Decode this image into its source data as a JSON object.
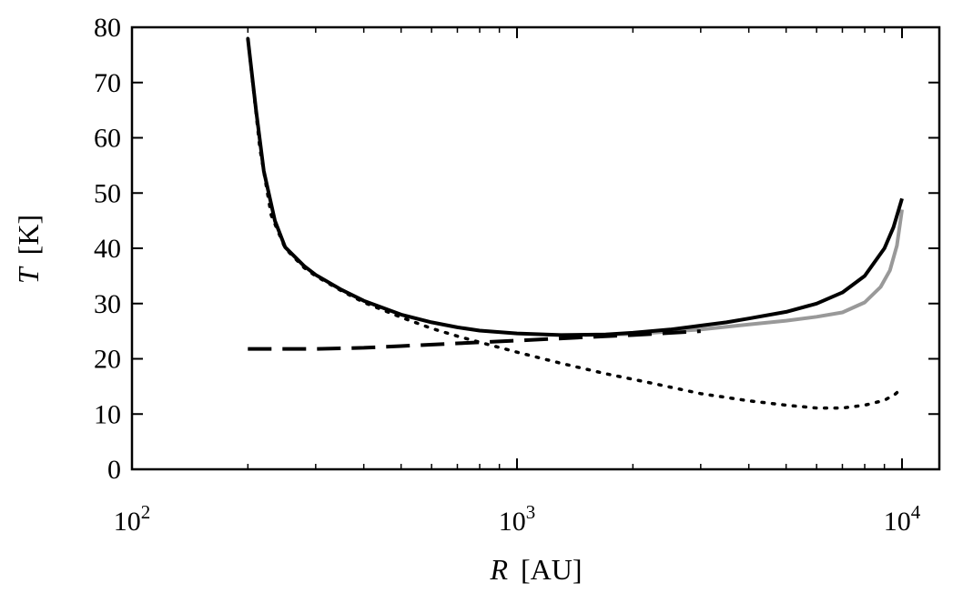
{
  "chart_data": {
    "type": "line",
    "xscale": "log",
    "xlim": [
      100,
      12500
    ],
    "ylim": [
      0,
      80
    ],
    "xlabel": {
      "var": "R",
      "unit": "[AU]"
    },
    "ylabel": {
      "var": "T",
      "unit": "[K]"
    },
    "xticks": [
      {
        "value": 100,
        "base": "10",
        "exp": "2"
      },
      {
        "value": 1000,
        "base": "10",
        "exp": "3"
      },
      {
        "value": 10000,
        "base": "10",
        "exp": "4"
      }
    ],
    "xminor_ticks": [
      200,
      300,
      400,
      500,
      600,
      700,
      800,
      900,
      2000,
      3000,
      4000,
      5000,
      6000,
      7000,
      8000,
      9000
    ],
    "yticks": [
      0,
      10,
      20,
      30,
      40,
      50,
      60,
      70,
      80
    ],
    "yticklabels": [
      "0",
      "10",
      "20",
      "30",
      "40",
      "50",
      "60",
      "70",
      "80"
    ],
    "grid": false,
    "legend": false,
    "series": [
      {
        "style": "dotted",
        "color": "#000000",
        "points": [
          [
            200,
            78
          ],
          [
            215,
            58
          ],
          [
            230,
            46
          ],
          [
            250,
            40
          ],
          [
            280,
            36.5
          ],
          [
            300,
            35
          ],
          [
            350,
            32.3
          ],
          [
            400,
            30.2
          ],
          [
            500,
            27.5
          ],
          [
            600,
            25.5
          ],
          [
            700,
            24.1
          ],
          [
            800,
            23
          ],
          [
            1000,
            21.2
          ],
          [
            1300,
            19.2
          ],
          [
            1700,
            17.3
          ],
          [
            2200,
            15.7
          ],
          [
            3000,
            13.7
          ],
          [
            4000,
            12.4
          ],
          [
            5000,
            11.6
          ],
          [
            6000,
            11.1
          ],
          [
            7000,
            11.1
          ],
          [
            8000,
            11.6
          ],
          [
            9000,
            12.5
          ],
          [
            9600,
            13.6
          ],
          [
            10000,
            14.7
          ]
        ]
      },
      {
        "style": "dashed",
        "color": "#000000",
        "points": [
          [
            200,
            21.8
          ],
          [
            300,
            21.8
          ],
          [
            400,
            22
          ],
          [
            500,
            22.3
          ],
          [
            700,
            22.8
          ],
          [
            1000,
            23.3
          ],
          [
            1500,
            23.9
          ],
          [
            2000,
            24.3
          ],
          [
            3000,
            25
          ]
        ]
      },
      {
        "style": "solid",
        "color": "#999999",
        "points": [
          [
            1500,
            24.3
          ],
          [
            2000,
            24.5
          ],
          [
            3000,
            25.3
          ],
          [
            4000,
            26.2
          ],
          [
            5000,
            26.9
          ],
          [
            6000,
            27.6
          ],
          [
            7000,
            28.4
          ],
          [
            8000,
            30.2
          ],
          [
            8800,
            33
          ],
          [
            9300,
            36
          ],
          [
            9700,
            40.5
          ],
          [
            10000,
            47
          ]
        ]
      },
      {
        "style": "solid",
        "color": "#000000",
        "points": [
          [
            200,
            78
          ],
          [
            210,
            65
          ],
          [
            220,
            54
          ],
          [
            235,
            45
          ],
          [
            250,
            40.2
          ],
          [
            280,
            36.8
          ],
          [
            300,
            35.2
          ],
          [
            350,
            32.5
          ],
          [
            400,
            30.5
          ],
          [
            500,
            28
          ],
          [
            600,
            26.6
          ],
          [
            700,
            25.7
          ],
          [
            800,
            25.1
          ],
          [
            1000,
            24.6
          ],
          [
            1300,
            24.3
          ],
          [
            1700,
            24.4
          ],
          [
            2000,
            24.7
          ],
          [
            2500,
            25.3
          ],
          [
            3000,
            26
          ],
          [
            3500,
            26.6
          ],
          [
            4000,
            27.3
          ],
          [
            5000,
            28.5
          ],
          [
            6000,
            30
          ],
          [
            7000,
            32
          ],
          [
            8000,
            35
          ],
          [
            9000,
            40
          ],
          [
            9500,
            43.8
          ],
          [
            10000,
            49
          ]
        ]
      }
    ]
  }
}
